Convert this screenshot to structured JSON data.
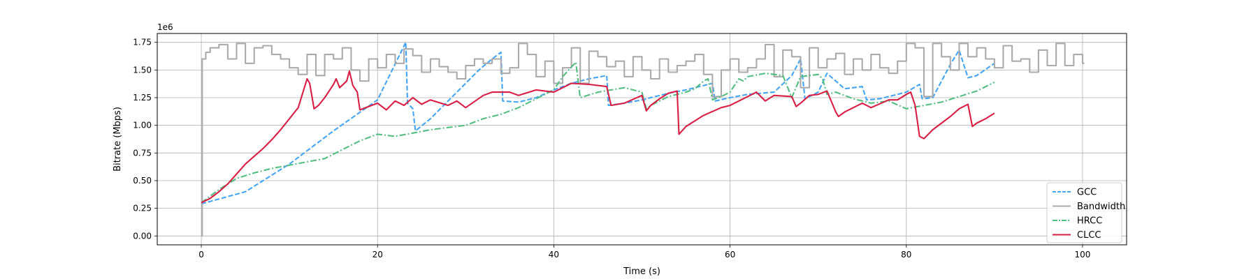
{
  "chart_data": {
    "type": "line",
    "xlabel": "Time (s)",
    "ylabel": "Bitrate (Mbps)",
    "offset_text": "1e6",
    "xlim": [
      -5,
      105
    ],
    "ylim": [
      -80000,
      1830000
    ],
    "xticks": [
      0,
      20,
      40,
      60,
      80,
      100
    ],
    "xtick_labels": [
      "0",
      "20",
      "40",
      "60",
      "80",
      "100"
    ],
    "yticks": [
      0,
      250000,
      500000,
      750000,
      1000000,
      1250000,
      1500000,
      1750000
    ],
    "ytick_labels": [
      "0.00",
      "0.25",
      "0.50",
      "0.75",
      "1.00",
      "1.25",
      "1.50",
      "1.75"
    ],
    "grid": true,
    "legend_position": "lower-right",
    "series": [
      {
        "name": "GCC",
        "color": "#42a5f5",
        "dash": "dashed",
        "x": [
          0,
          5,
          10,
          15,
          20,
          23.2,
          23.4,
          24,
          24.3,
          26,
          28,
          30,
          31.5,
          33,
          34,
          34.2,
          36,
          38,
          40,
          42,
          44,
          46,
          46.2,
          48,
          50,
          53,
          55,
          57,
          58,
          58.3,
          60,
          62,
          65,
          67,
          68,
          68.5,
          70,
          71,
          73,
          75,
          75.5,
          77,
          80,
          81.5,
          81.8,
          83,
          85,
          86,
          87,
          88,
          90
        ],
        "y": [
          290000,
          400000,
          650000,
          950000,
          1230000,
          1750000,
          1200000,
          1150000,
          950000,
          1060000,
          1220000,
          1380000,
          1500000,
          1600000,
          1660000,
          1220000,
          1210000,
          1250000,
          1320000,
          1380000,
          1420000,
          1450000,
          1180000,
          1200000,
          1230000,
          1290000,
          1320000,
          1360000,
          1380000,
          1220000,
          1250000,
          1280000,
          1300000,
          1450000,
          1600000,
          1240000,
          1300000,
          1470000,
          1330000,
          1350000,
          1230000,
          1240000,
          1300000,
          1370000,
          1240000,
          1250000,
          1550000,
          1680000,
          1430000,
          1450000,
          1560000
        ]
      },
      {
        "name": "Bandwidth",
        "color": "#aaaaaa",
        "dash": "solid",
        "step": true,
        "x": [
          0,
          0.1,
          0.5,
          1,
          2,
          3,
          4,
          5,
          6,
          7,
          8,
          9,
          10,
          11,
          12,
          13,
          14,
          15,
          16,
          17,
          18,
          19,
          20,
          21,
          22,
          23,
          24,
          25,
          26,
          27,
          28,
          29,
          30,
          31,
          32,
          33,
          34,
          35,
          36,
          37,
          38,
          39,
          40,
          41,
          42,
          43,
          44,
          45,
          46,
          47,
          48,
          49,
          50,
          51,
          52,
          53,
          54,
          55,
          56,
          57,
          58,
          59,
          60,
          61,
          62,
          63,
          64,
          65,
          66,
          67,
          68,
          69,
          70,
          71,
          72,
          73,
          74,
          75,
          76,
          77,
          78,
          79,
          80,
          81,
          82,
          83,
          84,
          85,
          86,
          87,
          88,
          89,
          90,
          91,
          92,
          93,
          94,
          95,
          96,
          97,
          98,
          99,
          100
        ],
        "y": [
          0,
          1600000,
          1660000,
          1700000,
          1730000,
          1600000,
          1740000,
          1560000,
          1700000,
          1720000,
          1640000,
          1600000,
          1520000,
          1460000,
          1640000,
          1450000,
          1640000,
          1600000,
          1700000,
          1500000,
          1400000,
          1600000,
          1520000,
          1640000,
          1560000,
          1690000,
          1630000,
          1480000,
          1600000,
          1530000,
          1480000,
          1420000,
          1540000,
          1600000,
          1560000,
          1600000,
          1470000,
          1520000,
          1740000,
          1640000,
          1440000,
          1580000,
          1380000,
          1520000,
          1700000,
          1380000,
          1670000,
          1620000,
          1530000,
          1580000,
          1440000,
          1620000,
          1500000,
          1420000,
          1600000,
          1480000,
          1540000,
          1580000,
          1640000,
          1460000,
          1260000,
          1500000,
          1600000,
          1480000,
          1520000,
          1600000,
          1730000,
          1440000,
          1680000,
          1620000,
          1340000,
          1700000,
          1520000,
          1600000,
          1650000,
          1460000,
          1600000,
          1500000,
          1640000,
          1520000,
          1470000,
          1580000,
          1740000,
          1700000,
          1260000,
          1740000,
          1620000,
          1500000,
          1740000,
          1620000,
          1700000,
          1600000,
          1520000,
          1720000,
          1580000,
          1600000,
          1480000,
          1680000,
          1540000,
          1740000,
          1540000,
          1640000,
          1560000
        ]
      },
      {
        "name": "HRCC",
        "color": "#52be80",
        "dash": "dashdot",
        "x": [
          0,
          2,
          4,
          6,
          8,
          10,
          12,
          14,
          16,
          18,
          20,
          22,
          24,
          26,
          28,
          30,
          32,
          34,
          36,
          38,
          40,
          41,
          42.5,
          43,
          45,
          48,
          50,
          50.5,
          51,
          53,
          55,
          56,
          57,
          57.5,
          58,
          59,
          60,
          61,
          61.5,
          62,
          64,
          66,
          67,
          68,
          70,
          70.5,
          71,
          72,
          74,
          76,
          78,
          80,
          82,
          84,
          86,
          88,
          90
        ],
        "y": [
          300000,
          420000,
          520000,
          570000,
          610000,
          640000,
          670000,
          700000,
          780000,
          860000,
          920000,
          900000,
          930000,
          960000,
          980000,
          1000000,
          1060000,
          1100000,
          1160000,
          1240000,
          1320000,
          1440000,
          1570000,
          1250000,
          1300000,
          1340000,
          1300000,
          1150000,
          1180000,
          1260000,
          1300000,
          1330000,
          1400000,
          1420000,
          1230000,
          1260000,
          1300000,
          1420000,
          1400000,
          1440000,
          1470000,
          1450000,
          1250000,
          1440000,
          1460000,
          1420000,
          1280000,
          1300000,
          1240000,
          1200000,
          1220000,
          1150000,
          1180000,
          1210000,
          1260000,
          1310000,
          1390000
        ]
      },
      {
        "name": "CLCC",
        "color": "#d81e45",
        "dash": "solid",
        "x": [
          0,
          1,
          2,
          3,
          4,
          5,
          6,
          7,
          8,
          9,
          10,
          11,
          12,
          12.3,
          12.8,
          13.3,
          14,
          15,
          15.3,
          15.7,
          16.5,
          16.8,
          17.2,
          17.7,
          18,
          20,
          21,
          22,
          23,
          24,
          25,
          26,
          28,
          29,
          30,
          32,
          33,
          35,
          36,
          38,
          40,
          42,
          44,
          46,
          46.5,
          48,
          50,
          50.5,
          51,
          52,
          53,
          54,
          54.2,
          55,
          57,
          59,
          60,
          62,
          63,
          64,
          65,
          67,
          67.5,
          68,
          69,
          70,
          71,
          72,
          72.3,
          73,
          75,
          76,
          78,
          79,
          80,
          80.5,
          81,
          81.5,
          82,
          83,
          85,
          86,
          87,
          87.5,
          88,
          89,
          90
        ],
        "y": [
          300000,
          340000,
          400000,
          470000,
          560000,
          650000,
          720000,
          790000,
          870000,
          960000,
          1060000,
          1160000,
          1420000,
          1380000,
          1150000,
          1180000,
          1250000,
          1370000,
          1420000,
          1340000,
          1400000,
          1490000,
          1360000,
          1300000,
          1140000,
          1200000,
          1140000,
          1220000,
          1180000,
          1250000,
          1190000,
          1230000,
          1180000,
          1220000,
          1160000,
          1270000,
          1300000,
          1300000,
          1270000,
          1320000,
          1300000,
          1380000,
          1370000,
          1350000,
          1180000,
          1200000,
          1270000,
          1130000,
          1180000,
          1240000,
          1290000,
          1310000,
          920000,
          990000,
          1090000,
          1160000,
          1180000,
          1260000,
          1300000,
          1220000,
          1270000,
          1260000,
          1170000,
          1200000,
          1270000,
          1280000,
          1310000,
          1120000,
          1080000,
          1120000,
          1200000,
          1160000,
          1230000,
          1230000,
          1280000,
          1300000,
          1180000,
          900000,
          880000,
          960000,
          1080000,
          1150000,
          1190000,
          990000,
          1020000,
          1060000,
          1110000
        ]
      }
    ]
  }
}
